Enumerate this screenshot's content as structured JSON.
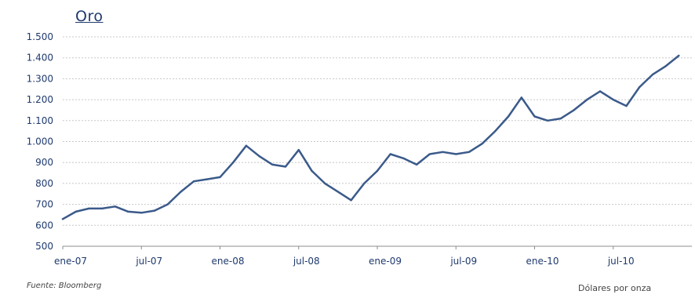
{
  "chart_data": {
    "type": "line",
    "title": "Oro",
    "source": "Fuente: Bloomberg",
    "units": "Dólares por onza",
    "xlabel": "",
    "ylabel": "",
    "ylim": [
      500,
      1500
    ],
    "yticks": [
      500,
      600,
      700,
      800,
      900,
      1000,
      1100,
      1200,
      1300,
      1400,
      1500
    ],
    "ytick_labels": [
      "500",
      "600",
      "700",
      "800",
      "900",
      "1.000",
      "1.100",
      "1.200",
      "1.300",
      "1.400",
      "1.500"
    ],
    "xticks": [
      "2007-01",
      "2007-07",
      "2008-01",
      "2008-07",
      "2009-01",
      "2009-07",
      "2010-01",
      "2010-07"
    ],
    "xtick_labels": [
      "ene-07",
      "jul-07",
      "ene-08",
      "jul-08",
      "ene-09",
      "jul-09",
      "ene-10",
      "jul-10"
    ],
    "xlim": [
      "2007-01",
      "2011-01"
    ],
    "grid": true,
    "legend": "none",
    "colors": {
      "line": "#3b5a8a",
      "grid": "#c8c8c8",
      "axis": "#8c8c8c",
      "text": "#1f3a6e"
    },
    "series": [
      {
        "x": [
          "2007-01",
          "2007-02",
          "2007-03",
          "2007-04",
          "2007-05",
          "2007-06",
          "2007-07",
          "2007-08",
          "2007-09",
          "2007-10",
          "2007-11",
          "2007-12",
          "2008-01",
          "2008-02",
          "2008-03",
          "2008-04",
          "2008-05",
          "2008-06",
          "2008-07",
          "2008-08",
          "2008-09",
          "2008-10",
          "2008-11",
          "2008-12",
          "2009-01",
          "2009-02",
          "2009-03",
          "2009-04",
          "2009-05",
          "2009-06",
          "2009-07",
          "2009-08",
          "2009-09",
          "2009-10",
          "2009-11",
          "2009-12",
          "2010-01",
          "2010-02",
          "2010-03",
          "2010-04",
          "2010-05",
          "2010-06",
          "2010-07",
          "2010-08",
          "2010-09",
          "2010-10",
          "2010-11",
          "2010-12"
        ],
        "values": [
          630,
          665,
          680,
          680,
          690,
          665,
          660,
          670,
          700,
          760,
          810,
          820,
          830,
          900,
          980,
          930,
          890,
          880,
          960,
          860,
          800,
          760,
          720,
          800,
          860,
          940,
          920,
          890,
          940,
          950,
          940,
          950,
          990,
          1050,
          1120,
          1210,
          1120,
          1100,
          1110,
          1150,
          1200,
          1240,
          1200,
          1170,
          1260,
          1320,
          1360,
          1410
        ]
      }
    ]
  }
}
